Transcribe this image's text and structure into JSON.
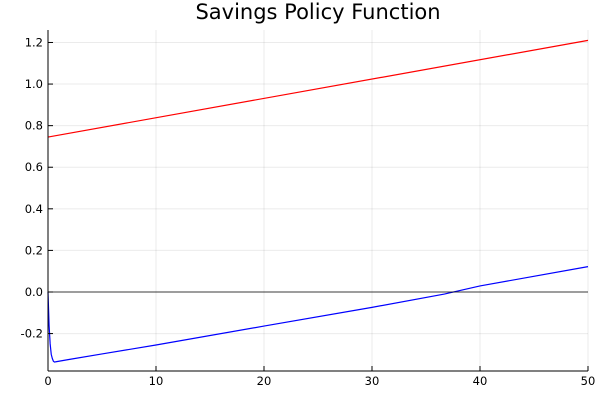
{
  "chart_data": {
    "type": "line",
    "title": "Savings Policy Function",
    "xlabel": "",
    "ylabel": "",
    "xlim": [
      0,
      50
    ],
    "ylim": [
      -0.38,
      1.26
    ],
    "x_ticks": [
      0,
      10,
      20,
      30,
      40,
      50
    ],
    "y_ticks": [
      -0.2,
      0.0,
      0.2,
      0.4,
      0.6,
      0.8,
      1.0,
      1.2
    ],
    "x_tick_labels": [
      "0",
      "10",
      "20",
      "30",
      "40",
      "50"
    ],
    "y_tick_labels": [
      "-0.2",
      "0.0",
      "0.2",
      "0.4",
      "0.6",
      "0.8",
      "1.0",
      "1.2"
    ],
    "grid": true,
    "legend": "none",
    "series": [
      {
        "color": "#ff0000",
        "x": [
          0,
          50
        ],
        "y": [
          0.745,
          1.21
        ]
      },
      {
        "color": "#0000ff",
        "x": [
          0,
          0.05,
          0.1,
          0.2,
          0.3,
          0.4,
          0.5,
          0.6,
          0.8,
          1,
          2,
          5,
          10,
          20,
          30,
          36.7,
          40,
          50
        ],
        "y": [
          0.0,
          -0.08,
          -0.16,
          -0.25,
          -0.3,
          -0.32,
          -0.333,
          -0.337,
          -0.335,
          -0.333,
          -0.324,
          -0.298,
          -0.255,
          -0.164,
          -0.074,
          -0.01,
          0.029,
          0.122
        ]
      },
      {
        "color": "#000000",
        "x": [
          0,
          50
        ],
        "y": [
          0,
          0
        ]
      }
    ]
  }
}
